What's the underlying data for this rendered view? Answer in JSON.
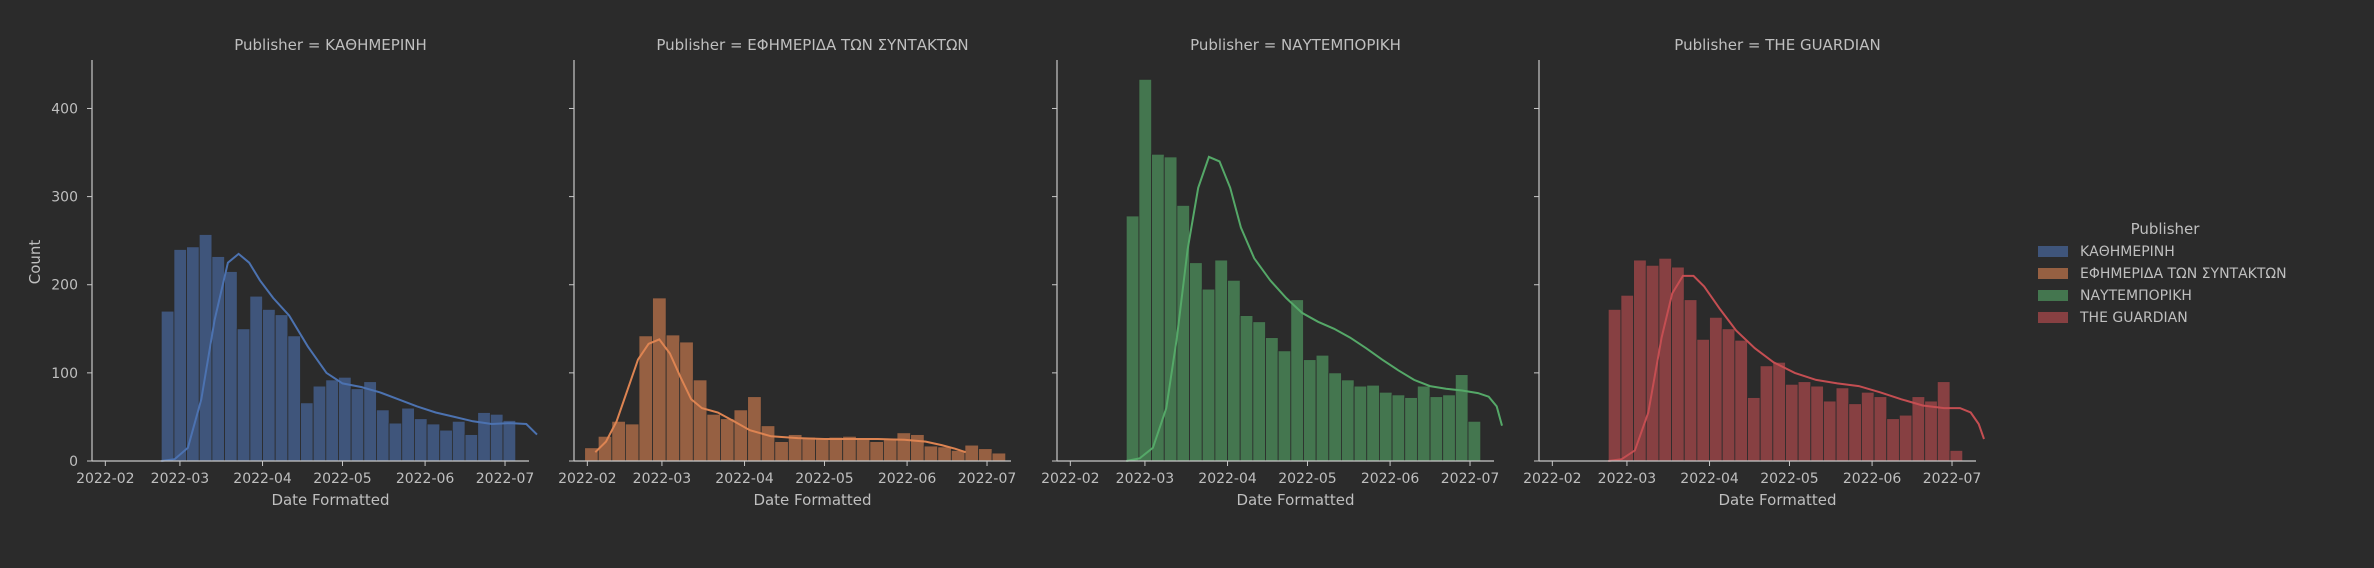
{
  "figure": {
    "background": "#2b2b2b",
    "text_color": "#bfbfbf",
    "axis_color": "#c8c8c8",
    "ylabel": "Count",
    "xlabel": "Date Formatted"
  },
  "legend": {
    "title": "Publisher",
    "placement": "right",
    "entries": [
      {
        "label": "ΚΑΘΗΜΕΡΙΝΗ",
        "color": "#4c72b0"
      },
      {
        "label": "ΕΦΗΜΕΡΙΔΑ ΤΩΝ ΣΥΝΤΑΚΤΩΝ",
        "color": "#dd8452"
      },
      {
        "label": "ΝΑΥΤΕΜΠΟΡΙΚΗ",
        "color": "#55a868"
      },
      {
        "label": "THE GUARDIAN",
        "color": "#c44e52"
      }
    ]
  },
  "chart_data": {
    "type": "bar",
    "layout": "facet-grid 1x4, shared y-axis",
    "grid": false,
    "xlabel": "Date Formatted",
    "ylabel": "Count",
    "ylim": [
      0,
      455
    ],
    "yticks": [
      0,
      100,
      200,
      300,
      400
    ],
    "xlim": [
      "2022-01-27",
      "2022-07-10"
    ],
    "xticks": [
      "2022-02-01",
      "2022-03-01",
      "2022-04-01",
      "2022-05-01",
      "2022-06-01",
      "2022-07-01"
    ],
    "xtick_labels": [
      "2022-02",
      "2022-03",
      "2022-04",
      "2022-05",
      "2022-06",
      "2022-07"
    ],
    "kde": true,
    "facets": [
      {
        "title": "Publisher = ΚΑΘΗΜΕΡΙΝΗ",
        "series": "ΚΑΘΗΜΕΡΙΝΗ",
        "color": "#4c72b0",
        "bin_start": "2022-02-22",
        "bin_end": "2022-07-05",
        "values": [
          170,
          240,
          243,
          257,
          232,
          215,
          150,
          187,
          172,
          166,
          142,
          66,
          85,
          92,
          95,
          82,
          90,
          58,
          43,
          60,
          48,
          42,
          35,
          45,
          30,
          55,
          53,
          46
        ],
        "kde": [
          [
            0,
            0
          ],
          [
            5,
            2
          ],
          [
            10,
            15
          ],
          [
            15,
            70
          ],
          [
            20,
            160
          ],
          [
            25,
            225
          ],
          [
            29,
            235
          ],
          [
            33,
            225
          ],
          [
            37,
            205
          ],
          [
            42,
            185
          ],
          [
            48,
            165
          ],
          [
            55,
            130
          ],
          [
            62,
            100
          ],
          [
            68,
            88
          ],
          [
            75,
            84
          ],
          [
            82,
            78
          ],
          [
            89,
            70
          ],
          [
            96,
            62
          ],
          [
            103,
            55
          ],
          [
            110,
            50
          ],
          [
            117,
            45
          ],
          [
            124,
            42
          ],
          [
            131,
            43
          ],
          [
            137,
            42
          ],
          [
            141,
            30
          ]
        ]
      },
      {
        "title": "Publisher = ΕΦΗΜΕΡΙΔΑ ΤΩΝ ΣΥΝΤΑΚΤΩΝ",
        "series": "ΕΦΗΜΕΡΙΔΑ ΤΩΝ ΣΥΝΤΑΚΤΩΝ",
        "color": "#dd8452",
        "bin_start": "2022-01-31",
        "bin_end": "2022-07-08",
        "values": [
          15,
          28,
          45,
          42,
          142,
          185,
          143,
          135,
          92,
          53,
          48,
          58,
          73,
          40,
          22,
          30,
          27,
          26,
          27,
          28,
          25,
          22,
          26,
          32,
          30,
          17,
          16,
          12,
          18,
          14,
          9
        ],
        "kde": [
          [
            4,
            10
          ],
          [
            8,
            22
          ],
          [
            12,
            45
          ],
          [
            16,
            80
          ],
          [
            20,
            115
          ],
          [
            24,
            133
          ],
          [
            28,
            138
          ],
          [
            32,
            122
          ],
          [
            36,
            95
          ],
          [
            40,
            70
          ],
          [
            44,
            60
          ],
          [
            50,
            55
          ],
          [
            56,
            45
          ],
          [
            62,
            35
          ],
          [
            70,
            28
          ],
          [
            80,
            26
          ],
          [
            90,
            25
          ],
          [
            100,
            25
          ],
          [
            110,
            25
          ],
          [
            120,
            24
          ],
          [
            128,
            22
          ],
          [
            134,
            18
          ],
          [
            139,
            14
          ],
          [
            143,
            10
          ]
        ]
      },
      {
        "title": "Publisher = ΝΑΥΤΕΜΠΟΡΙΚΗ",
        "series": "ΝΑΥΤΕΜΠΟΡΙΚΗ",
        "color": "#55a868",
        "bin_start": "2022-02-22",
        "bin_end": "2022-07-05",
        "values": [
          278,
          433,
          348,
          345,
          290,
          225,
          195,
          228,
          205,
          165,
          158,
          140,
          125,
          183,
          115,
          120,
          100,
          92,
          85,
          86,
          78,
          75,
          72,
          85,
          73,
          75,
          98,
          45
        ],
        "kde": [
          [
            0,
            0
          ],
          [
            5,
            3
          ],
          [
            10,
            15
          ],
          [
            15,
            60
          ],
          [
            19,
            140
          ],
          [
            23,
            240
          ],
          [
            27,
            310
          ],
          [
            31,
            345
          ],
          [
            35,
            340
          ],
          [
            39,
            310
          ],
          [
            43,
            265
          ],
          [
            48,
            230
          ],
          [
            54,
            205
          ],
          [
            60,
            185
          ],
          [
            66,
            168
          ],
          [
            72,
            158
          ],
          [
            78,
            150
          ],
          [
            84,
            140
          ],
          [
            90,
            128
          ],
          [
            96,
            115
          ],
          [
            102,
            103
          ],
          [
            108,
            92
          ],
          [
            114,
            85
          ],
          [
            120,
            82
          ],
          [
            126,
            80
          ],
          [
            132,
            77
          ],
          [
            136,
            73
          ],
          [
            139,
            62
          ],
          [
            141,
            40
          ]
        ]
      },
      {
        "title": "Publisher = THE GUARDIAN",
        "series": "THE GUARDIAN",
        "color": "#c44e52",
        "bin_start": "2022-02-22",
        "bin_end": "2022-07-05",
        "values": [
          172,
          188,
          228,
          222,
          230,
          220,
          183,
          138,
          163,
          150,
          137,
          72,
          108,
          112,
          87,
          90,
          85,
          68,
          83,
          65,
          78,
          73,
          48,
          52,
          73,
          68,
          90,
          12
        ],
        "kde": [
          [
            0,
            0
          ],
          [
            5,
            2
          ],
          [
            10,
            12
          ],
          [
            15,
            55
          ],
          [
            20,
            140
          ],
          [
            24,
            190
          ],
          [
            28,
            210
          ],
          [
            32,
            210
          ],
          [
            36,
            198
          ],
          [
            42,
            172
          ],
          [
            48,
            148
          ],
          [
            55,
            128
          ],
          [
            62,
            112
          ],
          [
            70,
            100
          ],
          [
            78,
            92
          ],
          [
            86,
            88
          ],
          [
            94,
            85
          ],
          [
            102,
            78
          ],
          [
            110,
            70
          ],
          [
            118,
            63
          ],
          [
            126,
            60
          ],
          [
            132,
            60
          ],
          [
            136,
            55
          ],
          [
            139,
            42
          ],
          [
            141,
            25
          ]
        ]
      }
    ]
  }
}
